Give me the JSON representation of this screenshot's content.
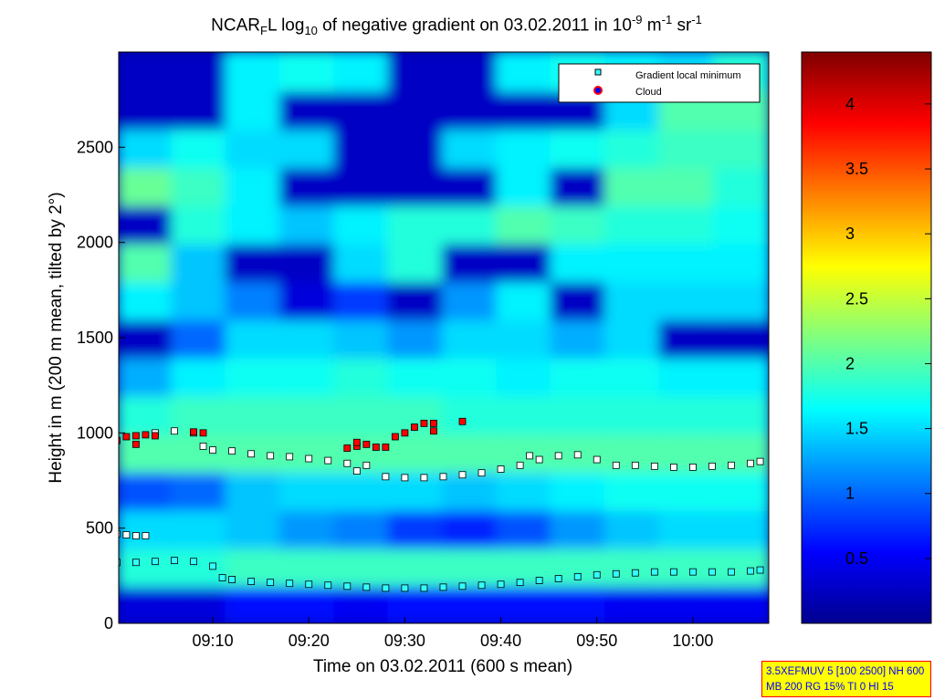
{
  "chart_data": {
    "type": "heatmap",
    "title_parts": [
      {
        "t": "NCAR"
      },
      {
        "t": "F",
        "sub": true
      },
      {
        "t": "L log"
      },
      {
        "t": "10",
        "sub": true
      },
      {
        "t": " of negative gradient on 03.02.2011 in 10"
      },
      {
        "t": "-9",
        "sup": true
      },
      {
        "t": " m"
      },
      {
        "t": "-1",
        "sup": true
      },
      {
        "t": " sr"
      },
      {
        "t": "-1",
        "sup": true
      }
    ],
    "xlabel": "Time on 03.02.2011 (600 s mean)",
    "ylabel": "Height in m (200 m mean, tilted by 2°)",
    "xlim": [
      "09:00",
      "10:08"
    ],
    "ylim": [
      0,
      3000
    ],
    "xticks": [
      "09:10",
      "09:20",
      "09:30",
      "09:40",
      "09:50",
      "10:00"
    ],
    "yticks": [
      0,
      500,
      1000,
      1500,
      2000,
      2500
    ],
    "colorbar": {
      "colormap": "jet",
      "range": [
        0,
        4.4
      ],
      "ticks": [
        0.5,
        1,
        1.5,
        2,
        2.5,
        3,
        3.5,
        4
      ]
    },
    "grid_note_rows": "rows from 0 m upward in 200 m steps, columns equally spaced in time",
    "grid": [
      [
        0.4,
        0.4,
        0.6,
        0.6,
        0.5,
        0.6,
        0.6,
        0.6,
        0.6,
        0.5,
        0.5,
        0.5
      ],
      [
        1.8,
        1.8,
        1.9,
        1.9,
        1.9,
        1.9,
        1.9,
        1.9,
        1.9,
        1.9,
        1.9,
        1.9
      ],
      [
        1.5,
        1.5,
        1.4,
        1.2,
        1.1,
        0.8,
        0.7,
        0.9,
        1.2,
        1.4,
        1.5,
        1.5
      ],
      [
        0.9,
        1.0,
        1.4,
        1.5,
        1.5,
        1.5,
        1.4,
        1.5,
        1.6,
        1.7,
        1.7,
        1.7
      ],
      [
        2.0,
        2.0,
        2.0,
        2.0,
        2.0,
        2.0,
        2.0,
        2.0,
        2.0,
        2.0,
        2.0,
        2.0
      ],
      [
        1.8,
        1.9,
        1.9,
        1.9,
        1.9,
        1.9,
        1.8,
        1.8,
        1.8,
        1.8,
        1.8,
        1.8
      ],
      [
        1.3,
        1.6,
        1.7,
        1.7,
        1.8,
        1.7,
        1.7,
        1.6,
        1.7,
        1.7,
        1.6,
        1.6
      ],
      [
        0.3,
        1.0,
        1.5,
        1.5,
        1.4,
        1.2,
        1.5,
        1.5,
        1.3,
        1.5,
        0.3,
        0.3
      ],
      [
        1.6,
        1.4,
        1.1,
        0.4,
        0.8,
        0.3,
        1.2,
        1.6,
        0.3,
        1.5,
        1.5,
        1.5
      ],
      [
        2.0,
        1.4,
        0.3,
        0.3,
        1.5,
        1.8,
        0.3,
        0.3,
        1.6,
        1.6,
        1.6,
        1.6
      ],
      [
        0.3,
        1.8,
        1.6,
        1.4,
        1.6,
        1.8,
        1.8,
        2.0,
        1.9,
        1.8,
        1.8,
        1.7
      ],
      [
        2.1,
        1.9,
        1.6,
        0.3,
        0.3,
        0.3,
        0.3,
        1.6,
        0.3,
        2.0,
        2.0,
        1.8
      ],
      [
        1.5,
        1.7,
        1.5,
        1.5,
        0.3,
        0.3,
        1.5,
        1.6,
        1.7,
        1.8,
        1.9,
        1.9
      ],
      [
        0.3,
        0.3,
        1.6,
        0.3,
        0.3,
        0.3,
        0.3,
        0.3,
        0.3,
        1.5,
        2.0,
        2.0
      ],
      [
        0.3,
        0.3,
        1.6,
        1.7,
        1.6,
        0.3,
        0.3,
        1.6,
        1.7,
        1.6,
        1.5,
        1.8
      ]
    ],
    "legend": {
      "placement": "top-right",
      "entries": [
        "Gradient local minimum",
        "Cloud"
      ]
    },
    "series": [
      {
        "name": "Gradient local minimum",
        "marker": "square",
        "color": "#33ffff",
        "points": [
          [
            "09:00",
            320
          ],
          [
            "09:02",
            320
          ],
          [
            "09:04",
            325
          ],
          [
            "09:06",
            330
          ],
          [
            "09:08",
            325
          ],
          [
            "09:10",
            300
          ],
          [
            "09:11",
            240
          ],
          [
            "09:12",
            230
          ],
          [
            "09:14",
            220
          ],
          [
            "09:16",
            215
          ],
          [
            "09:18",
            210
          ],
          [
            "09:20",
            205
          ],
          [
            "09:22",
            200
          ],
          [
            "09:24",
            195
          ],
          [
            "09:26",
            190
          ],
          [
            "09:28",
            185
          ],
          [
            "09:30",
            185
          ],
          [
            "09:32",
            185
          ],
          [
            "09:34",
            190
          ],
          [
            "09:36",
            195
          ],
          [
            "09:38",
            200
          ],
          [
            "09:40",
            205
          ],
          [
            "09:42",
            215
          ],
          [
            "09:44",
            225
          ],
          [
            "09:46",
            235
          ],
          [
            "09:48",
            245
          ],
          [
            "09:50",
            255
          ],
          [
            "09:52",
            260
          ],
          [
            "09:54",
            265
          ],
          [
            "09:56",
            270
          ],
          [
            "09:58",
            270
          ],
          [
            "10:00",
            270
          ],
          [
            "10:02",
            270
          ],
          [
            "10:04",
            270
          ],
          [
            "10:06",
            275
          ],
          [
            "10:07",
            280
          ]
        ]
      },
      {
        "marker": "square",
        "color": "#ffffff",
        "points": [
          [
            "09:00",
            470
          ],
          [
            "09:01",
            465
          ],
          [
            "09:02",
            460
          ],
          [
            "09:03",
            460
          ],
          [
            "09:04",
            1000
          ],
          [
            "09:06",
            1010
          ],
          [
            "09:08",
            1000
          ],
          [
            "09:09",
            930
          ],
          [
            "09:10",
            910
          ],
          [
            "09:12",
            905
          ],
          [
            "09:14",
            890
          ],
          [
            "09:16",
            880
          ],
          [
            "09:18",
            875
          ],
          [
            "09:20",
            865
          ],
          [
            "09:22",
            855
          ],
          [
            "09:24",
            840
          ],
          [
            "09:25",
            800
          ],
          [
            "09:26",
            830
          ],
          [
            "09:28",
            770
          ],
          [
            "09:30",
            765
          ],
          [
            "09:32",
            765
          ],
          [
            "09:34",
            770
          ],
          [
            "09:36",
            780
          ],
          [
            "09:38",
            790
          ],
          [
            "09:40",
            810
          ],
          [
            "09:42",
            830
          ],
          [
            "09:43",
            880
          ],
          [
            "09:44",
            860
          ],
          [
            "09:46",
            880
          ],
          [
            "09:48",
            885
          ],
          [
            "09:50",
            860
          ],
          [
            "09:52",
            830
          ],
          [
            "09:54",
            830
          ],
          [
            "09:56",
            825
          ],
          [
            "09:58",
            820
          ],
          [
            "10:00",
            820
          ],
          [
            "10:02",
            825
          ],
          [
            "10:04",
            830
          ],
          [
            "10:06",
            840
          ],
          [
            "10:07",
            850
          ]
        ]
      },
      {
        "name": "Cloud",
        "marker": "square",
        "color": "#ff0000",
        "points": [
          [
            "09:00",
            960
          ],
          [
            "09:01",
            980
          ],
          [
            "09:02",
            985
          ],
          [
            "09:02",
            940
          ],
          [
            "09:03",
            990
          ],
          [
            "09:04",
            985
          ],
          [
            "09:08",
            1005
          ],
          [
            "09:09",
            1000
          ],
          [
            "09:24",
            920
          ],
          [
            "09:25",
            930
          ],
          [
            "09:25",
            950
          ],
          [
            "09:26",
            940
          ],
          [
            "09:27",
            925
          ],
          [
            "09:28",
            925
          ],
          [
            "09:29",
            980
          ],
          [
            "09:30",
            1000
          ],
          [
            "09:31",
            1030
          ],
          [
            "09:32",
            1050
          ],
          [
            "09:33",
            1050
          ],
          [
            "09:33",
            1010
          ],
          [
            "09:36",
            1060
          ]
        ]
      }
    ]
  },
  "info_box": {
    "line1": "3.5XEFMUV 5 [100 2500] NH 600",
    "line2": "MB 200 RG 15% TI 0 HI 15"
  }
}
